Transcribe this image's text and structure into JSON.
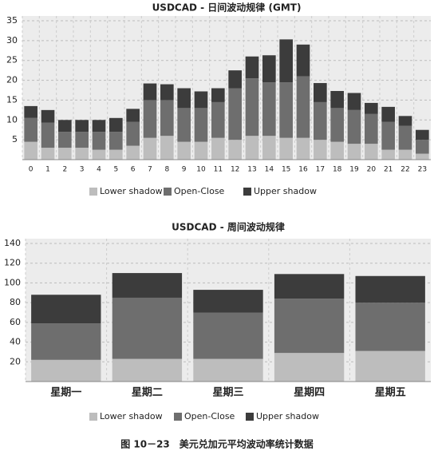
{
  "chart_data": [
    {
      "type": "bar",
      "stacked": true,
      "title": "USDCAD - 日间波动规律 (GMT)",
      "categories": [
        "0",
        "1",
        "2",
        "3",
        "4",
        "5",
        "6",
        "7",
        "8",
        "9",
        "10",
        "11",
        "12",
        "13",
        "14",
        "15",
        "16",
        "17",
        "18",
        "19",
        "20",
        "21",
        "22",
        "23"
      ],
      "series": [
        {
          "name": "Lower shadow",
          "color": "#bdbdbd",
          "values": [
            4.5,
            3,
            3,
            3,
            2.5,
            2.5,
            3.5,
            5.5,
            6,
            4.5,
            4.5,
            5.5,
            5,
            6,
            6,
            5.5,
            5.5,
            5,
            4.5,
            4,
            4,
            2.5,
            2.5,
            1.5
          ]
        },
        {
          "name": "Open-Close",
          "color": "#6e6e6e",
          "values": [
            6,
            6.3,
            4,
            4,
            4.5,
            4.5,
            6,
            9.5,
            9,
            8.5,
            8.5,
            9,
            13,
            14.5,
            13.5,
            14,
            15.5,
            9.5,
            8.5,
            8.5,
            7.5,
            7,
            6,
            3.5
          ]
        },
        {
          "name": "Upper shadow",
          "color": "#3c3c3c",
          "values": [
            3,
            3.2,
            3,
            3,
            3,
            3.5,
            3.3,
            4.2,
            4,
            5,
            4.2,
            3.5,
            4.5,
            5.5,
            6.8,
            10.8,
            8,
            4.8,
            4.3,
            4.3,
            2.8,
            3.8,
            2.5,
            2.5
          ]
        }
      ],
      "ylim": [
        0,
        35
      ],
      "yticks": [
        5,
        10,
        15,
        20,
        25,
        30,
        35
      ],
      "grid": true,
      "legend": "bottom"
    },
    {
      "type": "bar",
      "stacked": true,
      "title": "USDCAD - 周间波动规律",
      "categories": [
        "星期一",
        "星期二",
        "星期三",
        "星期四",
        "星期五"
      ],
      "series": [
        {
          "name": "Lower shadow",
          "color": "#bdbdbd",
          "values": [
            22,
            23,
            23,
            29,
            31
          ]
        },
        {
          "name": "Open-Close",
          "color": "#6e6e6e",
          "values": [
            37,
            62,
            47,
            55,
            49
          ]
        },
        {
          "name": "Upper shadow",
          "color": "#3c3c3c",
          "values": [
            29,
            25,
            23,
            25,
            27
          ]
        }
      ],
      "ylim": [
        0,
        140
      ],
      "yticks": [
        20,
        40,
        60,
        80,
        100,
        120,
        140
      ],
      "grid": true,
      "legend": "bottom"
    }
  ],
  "caption": "图 10－23　美元兑加元平均波动率统计数据"
}
